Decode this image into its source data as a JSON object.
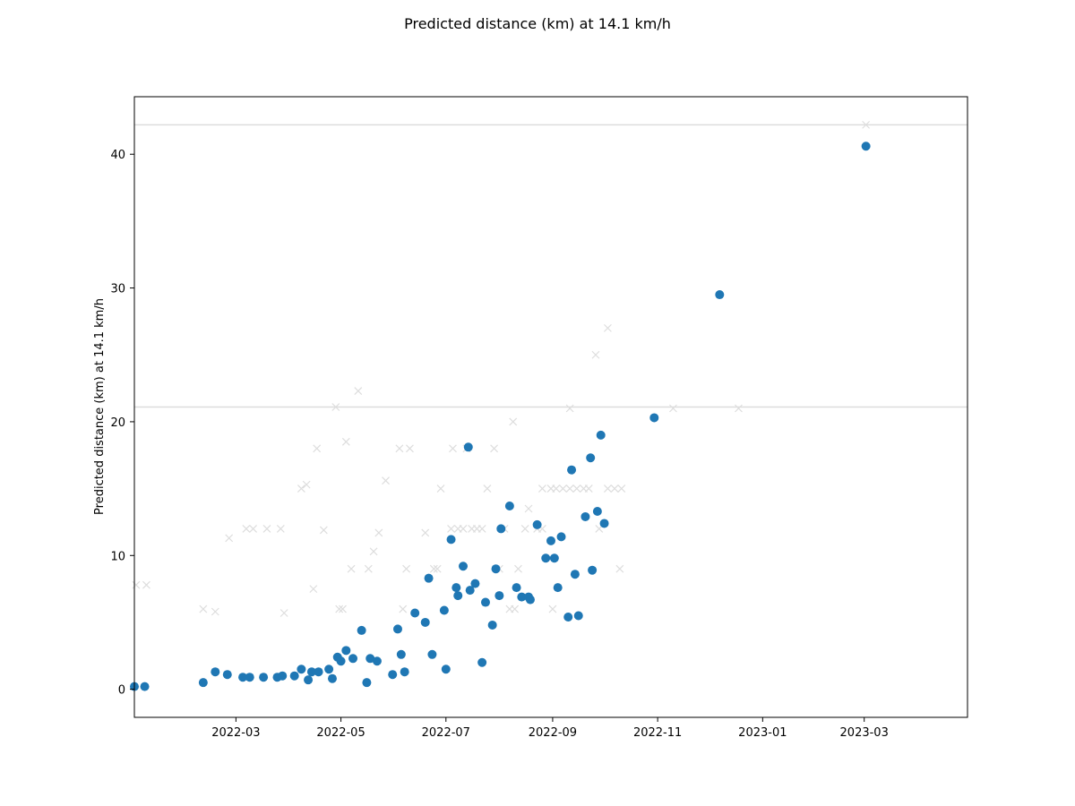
{
  "chart_data": {
    "type": "scatter",
    "title": "Predicted distance (km) at 14.1 km/h",
    "xlabel": "",
    "ylabel": "Predicted distance (km) at 14.1 km/h",
    "xlim": [
      "2022-01-01",
      "2023-04-30"
    ],
    "ylim": [
      -2.1,
      44.3
    ],
    "x_ticks": [
      "2022-03",
      "2022-05",
      "2022-07",
      "2022-09",
      "2022-11",
      "2023-01",
      "2023-03"
    ],
    "y_ticks": [
      0,
      10,
      20,
      30,
      40
    ],
    "grid": false,
    "reference_lines": [
      {
        "y": 21.1,
        "color": "#dddddd"
      },
      {
        "y": 42.2,
        "color": "#dddddd"
      }
    ],
    "colors": {
      "predicted": "#1f77b4",
      "actual": "#dddddd"
    },
    "series": [
      {
        "marker": "cross",
        "color": "#dddddd",
        "points": [
          [
            "2022-01-02",
            7.8
          ],
          [
            "2022-01-08",
            7.8
          ],
          [
            "2022-02-10",
            6.0
          ],
          [
            "2022-02-17",
            5.8
          ],
          [
            "2022-02-25",
            11.3
          ],
          [
            "2022-03-07",
            12.0
          ],
          [
            "2022-03-11",
            12.0
          ],
          [
            "2022-03-19",
            12.0
          ],
          [
            "2022-03-27",
            12.0
          ],
          [
            "2022-03-29",
            5.7
          ],
          [
            "2022-04-08",
            15.0
          ],
          [
            "2022-04-11",
            15.3
          ],
          [
            "2022-04-15",
            7.5
          ],
          [
            "2022-04-17",
            18.0
          ],
          [
            "2022-04-21",
            11.9
          ],
          [
            "2022-04-28",
            21.1
          ],
          [
            "2022-04-30",
            6.0
          ],
          [
            "2022-05-02",
            6.0
          ],
          [
            "2022-05-04",
            18.5
          ],
          [
            "2022-05-07",
            9.0
          ],
          [
            "2022-05-11",
            22.3
          ],
          [
            "2022-05-17",
            9.0
          ],
          [
            "2022-05-20",
            10.3
          ],
          [
            "2022-05-23",
            11.7
          ],
          [
            "2022-05-27",
            15.6
          ],
          [
            "2022-06-04",
            18.0
          ],
          [
            "2022-06-06",
            6.0
          ],
          [
            "2022-06-08",
            9.0
          ],
          [
            "2022-06-10",
            18.0
          ],
          [
            "2022-06-19",
            11.7
          ],
          [
            "2022-06-24",
            9.0
          ],
          [
            "2022-06-26",
            9.0
          ],
          [
            "2022-06-28",
            15.0
          ],
          [
            "2022-07-04",
            12.0
          ],
          [
            "2022-07-05",
            18.0
          ],
          [
            "2022-07-08",
            12.0
          ],
          [
            "2022-07-11",
            12.0
          ],
          [
            "2022-07-13",
            18.0
          ],
          [
            "2022-07-16",
            12.0
          ],
          [
            "2022-07-19",
            12.0
          ],
          [
            "2022-07-22",
            12.0
          ],
          [
            "2022-07-25",
            15.0
          ],
          [
            "2022-07-29",
            18.0
          ],
          [
            "2022-08-01",
            9.0
          ],
          [
            "2022-08-04",
            12.0
          ],
          [
            "2022-08-07",
            6.0
          ],
          [
            "2022-08-09",
            20.0
          ],
          [
            "2022-08-10",
            6.0
          ],
          [
            "2022-08-12",
            9.0
          ],
          [
            "2022-08-16",
            12.0
          ],
          [
            "2022-08-18",
            13.5
          ],
          [
            "2022-08-23",
            12.0
          ],
          [
            "2022-08-26",
            15.0
          ],
          [
            "2022-08-26",
            12.0
          ],
          [
            "2022-08-31",
            15.0
          ],
          [
            "2022-09-01",
            6.0
          ],
          [
            "2022-09-03",
            15.0
          ],
          [
            "2022-09-07",
            15.0
          ],
          [
            "2022-09-11",
            21.0
          ],
          [
            "2022-09-11",
            15.0
          ],
          [
            "2022-09-15",
            15.0
          ],
          [
            "2022-09-19",
            15.0
          ],
          [
            "2022-09-22",
            15.0
          ],
          [
            "2022-09-26",
            25.0
          ],
          [
            "2022-09-28",
            12.0
          ],
          [
            "2022-10-03",
            27.0
          ],
          [
            "2022-10-03",
            15.0
          ],
          [
            "2022-10-07",
            15.0
          ],
          [
            "2022-10-10",
            9.0
          ],
          [
            "2022-10-11",
            15.0
          ],
          [
            "2022-11-10",
            21.0
          ],
          [
            "2022-12-18",
            21.0
          ],
          [
            "2023-03-02",
            42.2
          ]
        ]
      },
      {
        "marker": "circle",
        "color": "#1f77b4",
        "points": [
          [
            "2022-01-01",
            0.2
          ],
          [
            "2022-01-07",
            0.2
          ],
          [
            "2022-02-10",
            0.5
          ],
          [
            "2022-02-17",
            1.3
          ],
          [
            "2022-02-24",
            1.1
          ],
          [
            "2022-03-05",
            0.9
          ],
          [
            "2022-03-09",
            0.9
          ],
          [
            "2022-03-17",
            0.9
          ],
          [
            "2022-03-25",
            0.9
          ],
          [
            "2022-03-28",
            1.0
          ],
          [
            "2022-04-04",
            1.0
          ],
          [
            "2022-04-08",
            1.5
          ],
          [
            "2022-04-12",
            0.7
          ],
          [
            "2022-04-14",
            1.3
          ],
          [
            "2022-04-18",
            1.3
          ],
          [
            "2022-04-24",
            1.5
          ],
          [
            "2022-04-26",
            0.8
          ],
          [
            "2022-04-29",
            2.4
          ],
          [
            "2022-05-01",
            2.1
          ],
          [
            "2022-05-04",
            2.9
          ],
          [
            "2022-05-08",
            2.3
          ],
          [
            "2022-05-13",
            4.4
          ],
          [
            "2022-05-16",
            0.5
          ],
          [
            "2022-05-18",
            2.3
          ],
          [
            "2022-05-22",
            2.1
          ],
          [
            "2022-05-31",
            1.1
          ],
          [
            "2022-06-03",
            4.5
          ],
          [
            "2022-06-05",
            2.6
          ],
          [
            "2022-06-07",
            1.3
          ],
          [
            "2022-06-13",
            5.7
          ],
          [
            "2022-06-19",
            5.0
          ],
          [
            "2022-06-21",
            8.3
          ],
          [
            "2022-06-23",
            2.6
          ],
          [
            "2022-06-30",
            5.9
          ],
          [
            "2022-07-01",
            1.5
          ],
          [
            "2022-07-04",
            11.2
          ],
          [
            "2022-07-07",
            7.6
          ],
          [
            "2022-07-08",
            7.0
          ],
          [
            "2022-07-11",
            9.2
          ],
          [
            "2022-07-14",
            18.1
          ],
          [
            "2022-07-15",
            7.4
          ],
          [
            "2022-07-18",
            7.9
          ],
          [
            "2022-07-22",
            2.0
          ],
          [
            "2022-07-24",
            6.5
          ],
          [
            "2022-07-28",
            4.8
          ],
          [
            "2022-07-30",
            9.0
          ],
          [
            "2022-08-01",
            7.0
          ],
          [
            "2022-08-02",
            12.0
          ],
          [
            "2022-08-07",
            13.7
          ],
          [
            "2022-08-11",
            7.6
          ],
          [
            "2022-08-14",
            6.9
          ],
          [
            "2022-08-18",
            6.9
          ],
          [
            "2022-08-19",
            6.7
          ],
          [
            "2022-08-23",
            12.3
          ],
          [
            "2022-08-28",
            9.8
          ],
          [
            "2022-08-31",
            11.1
          ],
          [
            "2022-09-02",
            9.8
          ],
          [
            "2022-09-04",
            7.6
          ],
          [
            "2022-09-06",
            11.4
          ],
          [
            "2022-09-10",
            5.4
          ],
          [
            "2022-09-12",
            16.4
          ],
          [
            "2022-09-14",
            8.6
          ],
          [
            "2022-09-16",
            5.5
          ],
          [
            "2022-09-20",
            12.9
          ],
          [
            "2022-09-23",
            17.3
          ],
          [
            "2022-09-24",
            8.9
          ],
          [
            "2022-09-27",
            13.3
          ],
          [
            "2022-09-29",
            19.0
          ],
          [
            "2022-10-01",
            12.4
          ],
          [
            "2022-10-30",
            20.3
          ],
          [
            "2022-12-07",
            29.5
          ],
          [
            "2023-03-02",
            40.6
          ]
        ]
      }
    ]
  }
}
